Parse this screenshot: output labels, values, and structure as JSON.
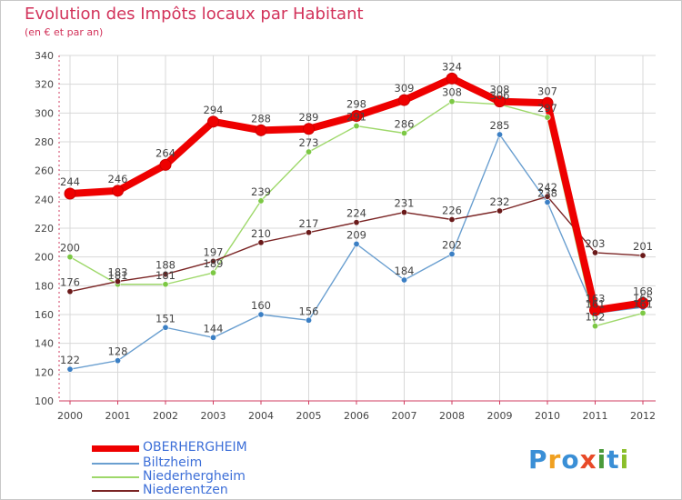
{
  "title": "Evolution des Impôts locaux par Habitant",
  "subtitle": "(en € et par an)",
  "brand": {
    "text": "Proxiti",
    "letters": [
      "P",
      "r",
      "o",
      "x",
      "i",
      "t",
      "i"
    ],
    "letter_colors": [
      "#3a8fd6",
      "#f0a020",
      "#3a8fd6",
      "#e84a28",
      "#4a9a3a",
      "#3a8fd6",
      "#8bbf2a"
    ]
  },
  "colors": {
    "axis": "#d23c60",
    "grid": "#d8d8d8",
    "label": "#444444"
  },
  "chart_data": {
    "type": "line",
    "title": "Evolution des Impôts locaux par Habitant",
    "subtitle": "(en € et par an)",
    "xlabel": "",
    "ylabel": "",
    "ylim": [
      100,
      340
    ],
    "yticks": [
      100,
      120,
      140,
      160,
      180,
      200,
      220,
      240,
      260,
      280,
      300,
      320,
      340
    ],
    "categories": [
      "2000",
      "2001",
      "2002",
      "2003",
      "2004",
      "2005",
      "2006",
      "2007",
      "2008",
      "2009",
      "2010",
      "2011",
      "2012"
    ],
    "grid": true,
    "legend_position": "bottom-left",
    "series": [
      {
        "name": "OBERHERGHEIM",
        "color": "#ee0000",
        "marker_color": "#ee0000",
        "emphasis": true,
        "values": [
          244,
          246,
          264,
          294,
          288,
          289,
          298,
          309,
          324,
          308,
          307,
          163,
          168
        ],
        "labels": [
          "244",
          "246",
          "264",
          "294",
          "288",
          "289",
          "298",
          "309",
          "324",
          "308",
          "307",
          "163",
          "168"
        ]
      },
      {
        "name": "Biltzheim",
        "color": "#6a9fd0",
        "marker_color": "#3b7fc4",
        "emphasis": false,
        "values": [
          122,
          128,
          151,
          144,
          160,
          156,
          209,
          184,
          202,
          285,
          238,
          161,
          165
        ],
        "labels": [
          "122",
          "128",
          "151",
          "144",
          "160",
          "156",
          "209",
          "184",
          "202",
          "285",
          "238",
          "161",
          "165"
        ]
      },
      {
        "name": "Niederhergheim",
        "color": "#9ed86a",
        "marker_color": "#7cc844",
        "emphasis": false,
        "values": [
          200,
          181,
          181,
          189,
          239,
          273,
          291,
          286,
          308,
          306,
          297,
          152,
          161
        ],
        "labels": [
          "200",
          "181",
          "181",
          "189",
          "239",
          "273",
          "291",
          "286",
          "308",
          "306",
          "297",
          "152",
          "161"
        ]
      },
      {
        "name": "Niederentzen",
        "color": "#7a2424",
        "marker_color": "#6a1a1a",
        "emphasis": false,
        "values": [
          176,
          183,
          188,
          197,
          210,
          217,
          224,
          231,
          226,
          232,
          242,
          203,
          201
        ],
        "labels": [
          "176",
          "183",
          "188",
          "197",
          "210",
          "217",
          "224",
          "231",
          "226",
          "232",
          "242",
          "203",
          "201"
        ]
      }
    ]
  }
}
